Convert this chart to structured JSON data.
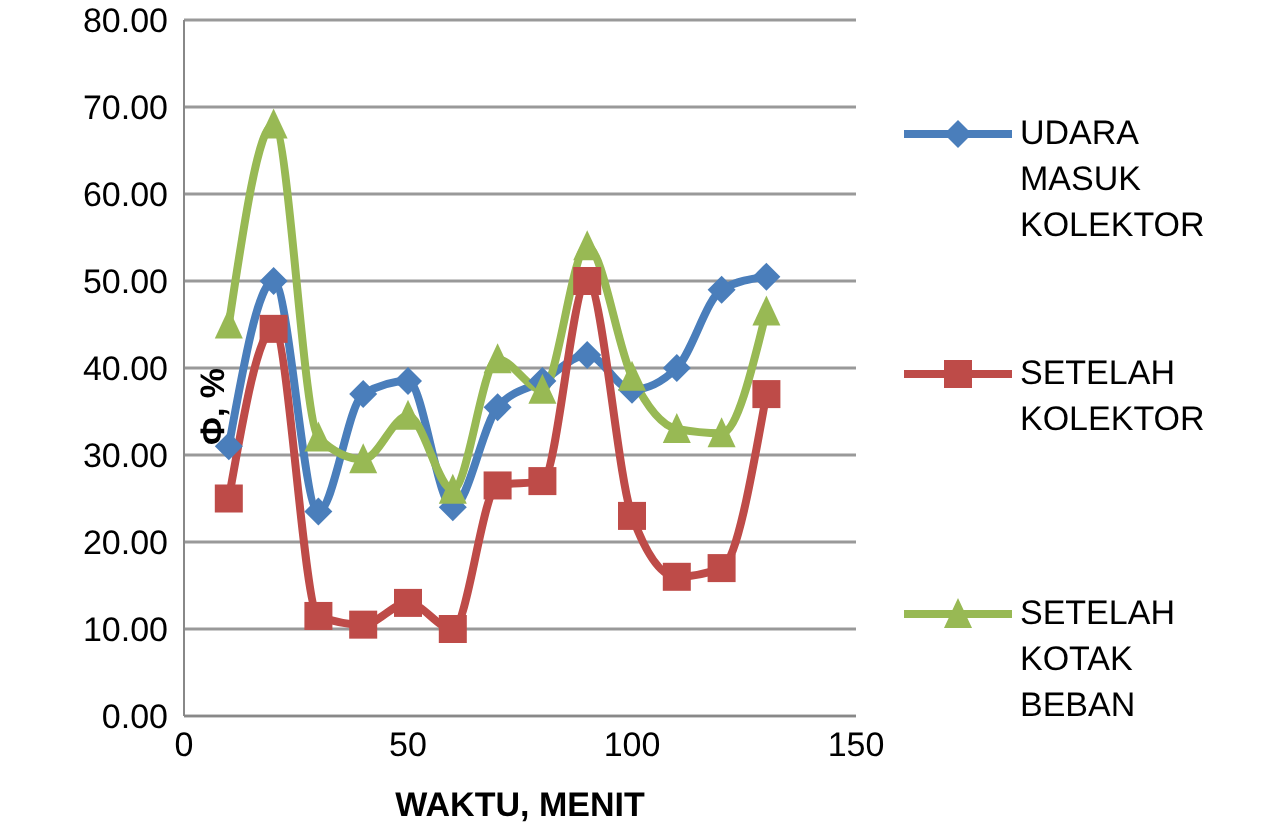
{
  "chart_data": {
    "type": "line",
    "xlabel": "WAKTU, MENIT",
    "ylabel": "Φ, %",
    "x": [
      10,
      20,
      30,
      40,
      50,
      60,
      70,
      80,
      90,
      100,
      110,
      120,
      130
    ],
    "series": [
      {
        "name": "UDARA MASUK KOLEKTOR",
        "color": "#4a7ebb",
        "marker": "diamond",
        "values": [
          31,
          50,
          23.5,
          37,
          38.5,
          24,
          35.5,
          38.5,
          41.5,
          37.5,
          40,
          49,
          50.5
        ]
      },
      {
        "name": "SETELAH KOLEKTOR",
        "color": "#be4b48",
        "marker": "square",
        "values": [
          25,
          44.5,
          11.5,
          10.5,
          13,
          10,
          26.5,
          27,
          50,
          23,
          16,
          17,
          37
        ]
      },
      {
        "name": "SETELAH KOTAK BEBAN",
        "color": "#98b954",
        "marker": "triangle",
        "values": [
          45,
          68,
          32,
          29.5,
          34.5,
          26,
          41,
          37.5,
          54,
          39,
          33,
          32.5,
          46.5
        ]
      }
    ],
    "xlim": [
      0,
      150
    ],
    "xticks": [
      0,
      50,
      100,
      150
    ],
    "ylim": [
      0,
      80
    ],
    "yticks": [
      {
        "value": 0,
        "label": "0.00"
      },
      {
        "value": 10,
        "label": "10.00"
      },
      {
        "value": 20,
        "label": "20.00"
      },
      {
        "value": 30,
        "label": "30.00"
      },
      {
        "value": 40,
        "label": "40.00"
      },
      {
        "value": 50,
        "label": "50.00"
      },
      {
        "value": 60,
        "label": "60.00"
      },
      {
        "value": 70,
        "label": "70.00"
      },
      {
        "value": 80,
        "label": "80.00"
      }
    ],
    "grid": "y",
    "legend": "right"
  }
}
